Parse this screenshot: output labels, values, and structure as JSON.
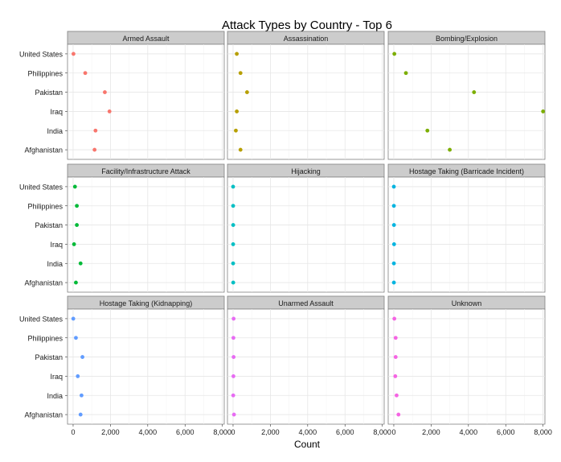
{
  "chart_data": {
    "type": "scatter",
    "title": "Attack Types by Country - Top 6",
    "xlabel": "Count",
    "ylabel": "",
    "xlim": [
      -300,
      8100
    ],
    "x_ticks": [
      0,
      2000,
      4000,
      6000,
      8000
    ],
    "x_tick_labels": [
      "0",
      "2,000",
      "4,000",
      "6,000",
      "8,000"
    ],
    "countries": [
      "United States",
      "Philippines",
      "Pakistan",
      "Iraq",
      "India",
      "Afghanistan"
    ],
    "grid": true,
    "legend": "none",
    "facets": [
      {
        "name": "Armed Assault",
        "color": "#F8766D",
        "values": [
          20,
          650,
          1700,
          1950,
          1200,
          1150
        ]
      },
      {
        "name": "Assassination",
        "color": "#B79F00",
        "values": [
          200,
          400,
          750,
          200,
          150,
          400
        ]
      },
      {
        "name": "Bombing/Explosion",
        "color": "#7CAE00",
        "values": [
          30,
          650,
          4300,
          8000,
          1800,
          3000
        ]
      },
      {
        "name": "Facility/Infrastructure Attack",
        "color": "#00BA38",
        "values": [
          100,
          200,
          200,
          50,
          400,
          150
        ]
      },
      {
        "name": "Hijacking",
        "color": "#00BFC4",
        "values": [
          3,
          5,
          8,
          5,
          4,
          10
        ]
      },
      {
        "name": "Hostage Taking (Barricade Incident)",
        "color": "#00B4E0",
        "values": [
          3,
          5,
          10,
          15,
          5,
          5
        ]
      },
      {
        "name": "Hostage Taking (Kidnapping)",
        "color": "#619CFF",
        "values": [
          10,
          150,
          500,
          250,
          450,
          400
        ]
      },
      {
        "name": "Unarmed Assault",
        "color": "#E76BF3",
        "values": [
          30,
          20,
          30,
          20,
          10,
          50
        ]
      },
      {
        "name": "Unknown",
        "color": "#F564E3",
        "values": [
          30,
          100,
          100,
          80,
          150,
          250
        ]
      }
    ]
  }
}
